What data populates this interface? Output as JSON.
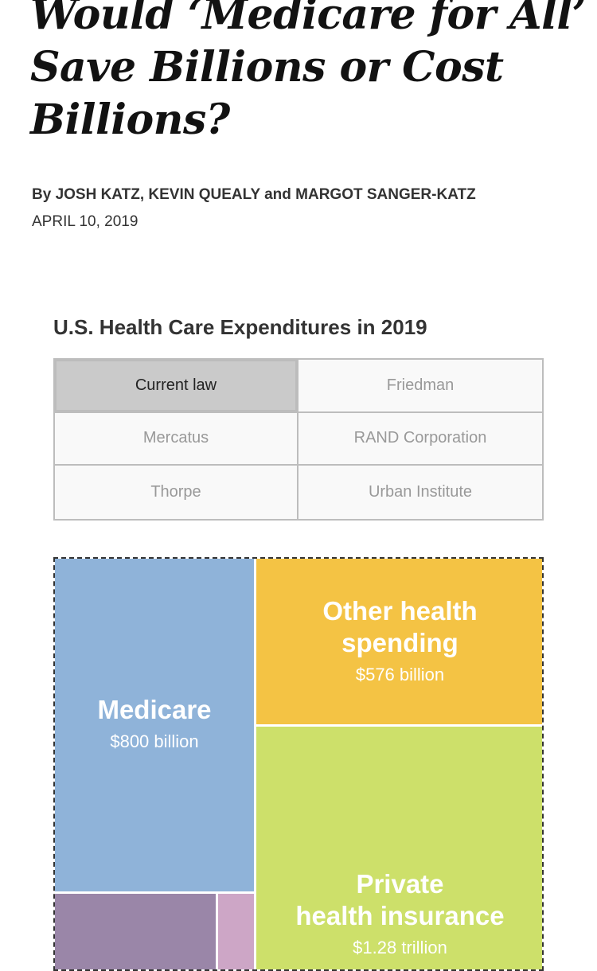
{
  "article": {
    "headline_lines": [
      "Would ‘Medicare for All’",
      "Save Billions or Cost",
      "Billions?"
    ],
    "byline": "By JOSH KATZ, KEVIN QUEALY and MARGOT SANGER-KATZ",
    "date": "APRIL 10, 2019"
  },
  "chart_title": "U.S. Health Care Expenditures in 2019",
  "tabs": [
    {
      "label": "Current law",
      "selected": true
    },
    {
      "label": "Friedman",
      "selected": false
    },
    {
      "label": "Mercatus",
      "selected": false
    },
    {
      "label": "RAND Corporation",
      "selected": false
    },
    {
      "label": "Thorpe",
      "selected": false
    },
    {
      "label": "Urban Institute",
      "selected": false
    }
  ],
  "treemap": {
    "medicare": {
      "name": "Medicare",
      "value": "$800 billion",
      "color": "#8fb3d9"
    },
    "other": {
      "name_lines": [
        "Other health",
        "spending"
      ],
      "value": "$576 billion",
      "color": "#f4c344"
    },
    "private": {
      "name_lines": [
        "Private",
        "health insurance"
      ],
      "value": "$1.28 trillion",
      "color": "#cde06a"
    },
    "purple": {
      "color": "#9a86a8"
    },
    "pink": {
      "color": "#cda6c6"
    }
  }
}
